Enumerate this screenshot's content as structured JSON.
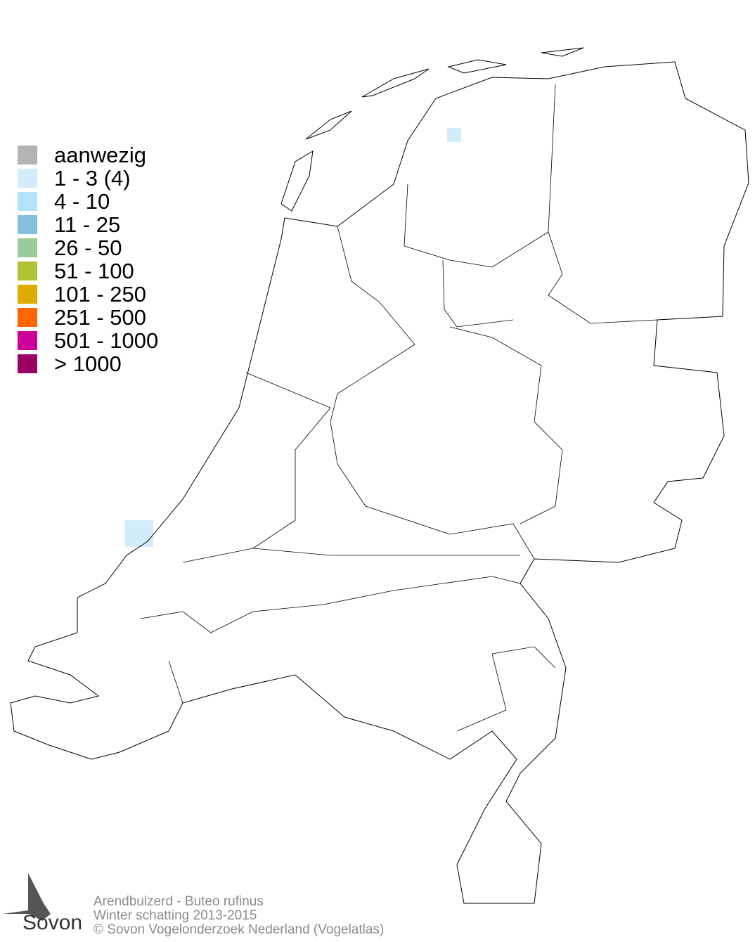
{
  "legend": [
    {
      "label": "aanwezig",
      "color": "#b3b3b3"
    },
    {
      "label": "1 - 3 (4)",
      "color": "#d3ecfa"
    },
    {
      "label": "4 - 10",
      "color": "#b3e3fa"
    },
    {
      "label": "11 - 25",
      "color": "#85c1de"
    },
    {
      "label": "26 - 50",
      "color": "#99cc99"
    },
    {
      "label": "51 - 100",
      "color": "#b2c235"
    },
    {
      "label": "101 - 250",
      "color": "#e0ab00"
    },
    {
      "label": "251 - 500",
      "color": "#ff6600"
    },
    {
      "label": "501 - 1000",
      "color": "#cc0099"
    },
    {
      "label": "> 1000",
      "color": "#990066"
    }
  ],
  "cells": [
    {
      "class": "1 - 3 (4)",
      "location": "Friesland"
    },
    {
      "class": "1 - 3 (4)",
      "location": "Maasvlakte"
    }
  ],
  "footer": {
    "species": "Arendbuizerd - Buteo rufinus",
    "season": "Winter schatting 2013-2015",
    "copyright": "© Sovon Vogelonderzoek Nederland (Vogelatlas)"
  },
  "logo": {
    "text": "Sovon"
  }
}
